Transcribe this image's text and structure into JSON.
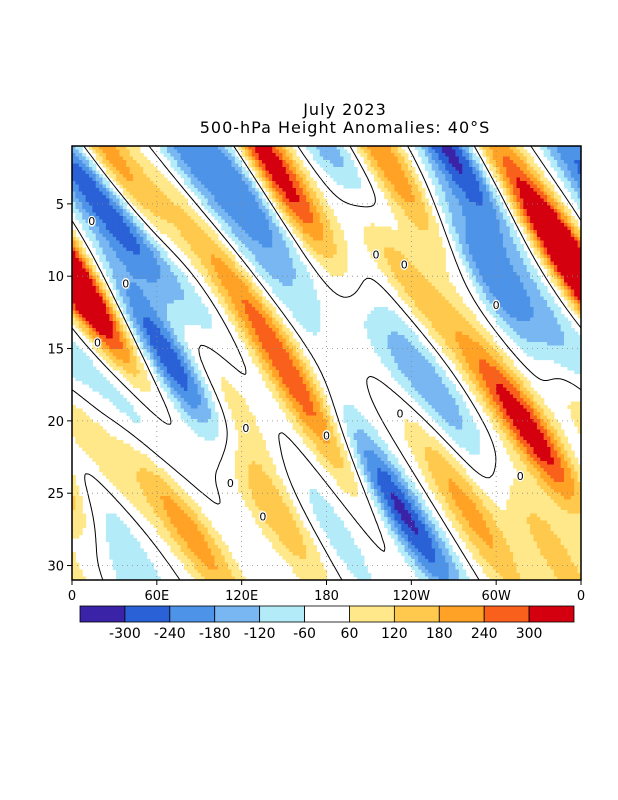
{
  "chart_data": {
    "type": "heatmap",
    "title": "July 2023",
    "subtitle": "500-hPa Height Anomalies: 40°S",
    "xlabel": "",
    "ylabel": "",
    "x_range_deg_east": [
      0,
      360
    ],
    "y_range_day": [
      1,
      31
    ],
    "y_reversed": true,
    "x_ticks": [
      "0",
      "60E",
      "120E",
      "180",
      "120W",
      "60W",
      "0"
    ],
    "y_ticks": [
      "5",
      "10",
      "15",
      "20",
      "25",
      "30"
    ],
    "grid": "dotted",
    "legend": "colorbar-bottom",
    "contour_labels": [
      "0"
    ],
    "colorbar": {
      "levels": [
        "-300",
        "-240",
        "-180",
        "-120",
        "-60",
        "60",
        "120",
        "180",
        "240",
        "300"
      ],
      "colors": [
        "#3b23a8",
        "#2b61d6",
        "#4d93e8",
        "#79b7f2",
        "#b3ecf8",
        "#ffffff",
        "#ffe88a",
        "#ffc94d",
        "#ffa225",
        "#f9601b",
        "#d4000f"
      ]
    },
    "anomaly_bands": [
      {
        "day": 1,
        "lon": 20,
        "value": 140
      },
      {
        "day": 1,
        "lon": 75,
        "value": -180
      },
      {
        "day": 1,
        "lon": 135,
        "value": 250
      },
      {
        "day": 1,
        "lon": 180,
        "value": -200
      },
      {
        "day": 1,
        "lon": 215,
        "value": 180
      },
      {
        "day": 1,
        "lon": 265,
        "value": -320
      },
      {
        "day": 1,
        "lon": 300,
        "value": 150
      },
      {
        "day": 1,
        "lon": 345,
        "value": -120
      },
      {
        "day": 4,
        "lon": 40,
        "value": 140
      },
      {
        "day": 4,
        "lon": 122,
        "value": -220
      },
      {
        "day": 5,
        "lon": 155,
        "value": 160
      },
      {
        "day": 5,
        "lon": 248,
        "value": 120
      },
      {
        "day": 5,
        "lon": 20,
        "value": -100
      },
      {
        "day": 6,
        "lon": 35,
        "value": -180
      },
      {
        "day": 7,
        "lon": 88,
        "value": 100
      },
      {
        "day": 8,
        "lon": 280,
        "value": -120
      },
      {
        "day": 9,
        "lon": 230,
        "value": 180
      },
      {
        "day": 10,
        "lon": 0,
        "value": 280
      },
      {
        "day": 10,
        "lon": 360,
        "value": 260
      },
      {
        "day": 10,
        "lon": 75,
        "value": -120
      },
      {
        "day": 10,
        "lon": 140,
        "value": -90
      },
      {
        "day": 11,
        "lon": 300,
        "value": -140
      },
      {
        "day": 13,
        "lon": 135,
        "value": 150
      },
      {
        "day": 13,
        "lon": 335,
        "value": -120
      },
      {
        "day": 15,
        "lon": 60,
        "value": -150
      },
      {
        "day": 16,
        "lon": 228,
        "value": -100
      },
      {
        "day": 17,
        "lon": 80,
        "value": -200
      },
      {
        "day": 18,
        "lon": 110,
        "value": 120
      },
      {
        "day": 18,
        "lon": 160,
        "value": 150
      },
      {
        "day": 18,
        "lon": 260,
        "value": -150
      },
      {
        "day": 19,
        "lon": 310,
        "value": 180
      },
      {
        "day": 20,
        "lon": 45,
        "value": -140
      },
      {
        "day": 21,
        "lon": 10,
        "value": 150
      },
      {
        "day": 22,
        "lon": 190,
        "value": 150
      },
      {
        "day": 22,
        "lon": 335,
        "value": 220
      },
      {
        "day": 24,
        "lon": 215,
        "value": -180
      },
      {
        "day": 24,
        "lon": 270,
        "value": 120
      },
      {
        "day": 25,
        "lon": 135,
        "value": 210
      },
      {
        "day": 25,
        "lon": 70,
        "value": 100
      },
      {
        "day": 26,
        "lon": 30,
        "value": -80
      },
      {
        "day": 27,
        "lon": 238,
        "value": -220
      },
      {
        "day": 27,
        "lon": 180,
        "value": -100
      },
      {
        "day": 28,
        "lon": 85,
        "value": 160
      },
      {
        "day": 28,
        "lon": 290,
        "value": 120
      },
      {
        "day": 29,
        "lon": 340,
        "value": 160
      },
      {
        "day": 30,
        "lon": 35,
        "value": -120
      }
    ]
  }
}
